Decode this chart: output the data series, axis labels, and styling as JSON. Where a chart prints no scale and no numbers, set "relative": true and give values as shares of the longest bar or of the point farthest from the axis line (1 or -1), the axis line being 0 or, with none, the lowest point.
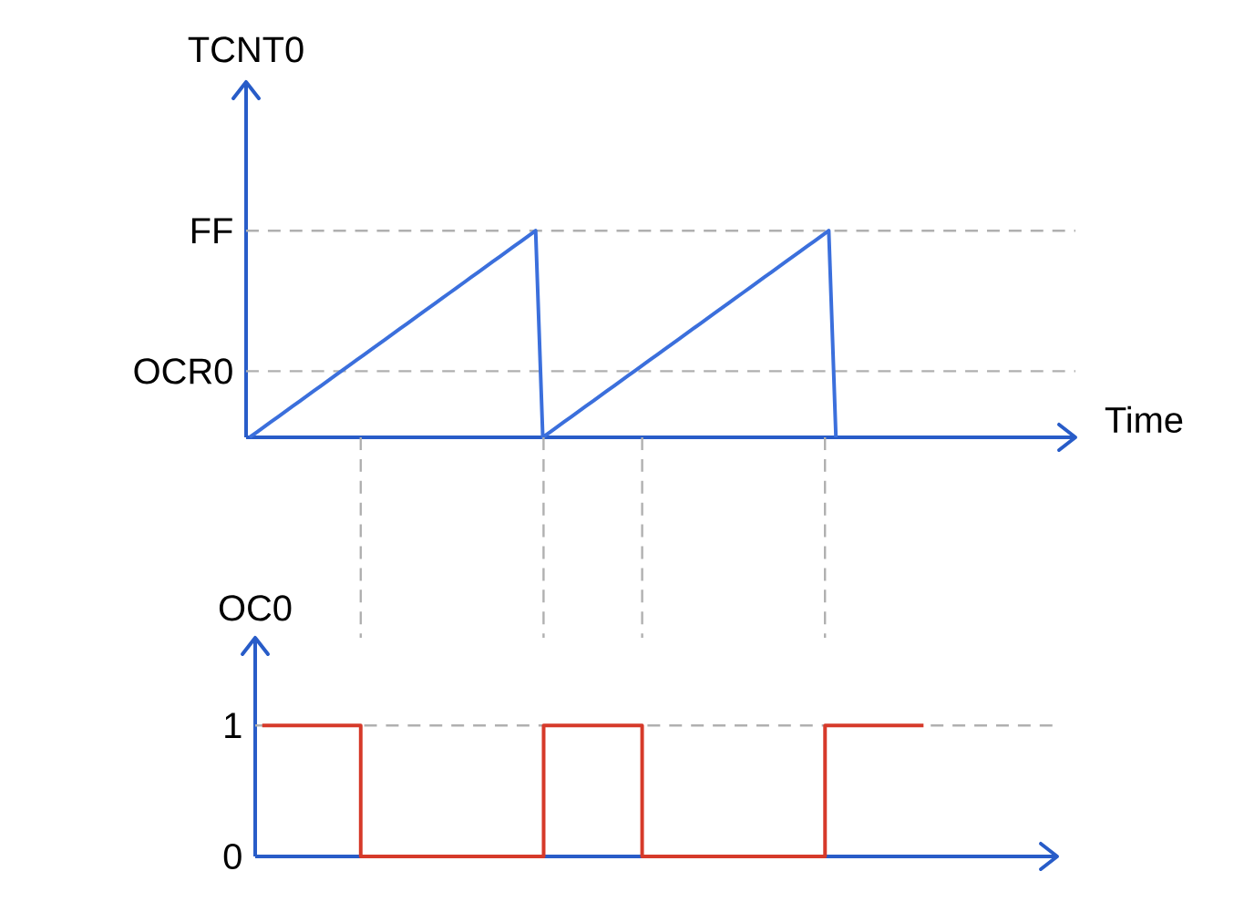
{
  "chart_data": [
    {
      "type": "line",
      "ylabel": "TCNT0",
      "xlabel": "Time",
      "relative": true,
      "categories": [
        null,
        null,
        null,
        null,
        null,
        null,
        null,
        null,
        null,
        null,
        null,
        null,
        null,
        null,
        null,
        null,
        null,
        null,
        null,
        null,
        null,
        null,
        null,
        null,
        null,
        null,
        null,
        null,
        null,
        null,
        null,
        null,
        null,
        null,
        null,
        null,
        null,
        null,
        null,
        null,
        null,
        null,
        null,
        null,
        null,
        null,
        null,
        null,
        null,
        null,
        null,
        null,
        null,
        null,
        null,
        null,
        null,
        null,
        null,
        null,
        null,
        null,
        null,
        null,
        null,
        null,
        null,
        null,
        null,
        null,
        null,
        null,
        null,
        null,
        null,
        null,
        null,
        null,
        null,
        null,
        null,
        null,
        null,
        null,
        null,
        null,
        null,
        null,
        null,
        null,
        null,
        null,
        null,
        null,
        null,
        null,
        null,
        null,
        null,
        null,
        null,
        null,
        null,
        null,
        null,
        null,
        null,
        null,
        null,
        null,
        null,
        null,
        null,
        null,
        null,
        null
      ],
      "values": [
        0,
        0.025,
        0.05,
        0.075,
        0.1,
        0.125,
        0.15,
        0.175,
        0.2,
        0.225,
        0.25,
        0.275,
        0.3,
        0.325,
        0.35,
        0.375,
        0.4,
        0.425,
        0.45,
        0.475,
        0.5,
        0.525,
        0.55,
        0.575,
        0.6,
        0.625,
        0.65,
        0.675,
        0.7,
        0.725,
        0.75,
        0.775,
        0.8,
        0.825,
        0.85,
        0.875,
        0.9,
        0.925,
        0.95,
        0.975,
        1,
        0,
        0.025,
        0.05,
        0.075,
        0.1,
        0.125,
        0.15,
        0.175,
        0.2,
        0.225,
        0.25,
        0.275,
        0.3,
        0.325,
        0.35,
        0.375,
        0.4,
        0.425,
        0.45,
        0.475,
        0.5,
        0.525,
        0.55,
        0.575,
        0.6,
        0.625,
        0.65,
        0.675,
        0.7,
        0.725,
        0.75,
        0.775,
        0.8,
        0.825,
        0.85,
        0.875,
        0.9,
        0.925,
        0.95,
        0.975,
        1,
        0,
        null,
        null,
        null,
        null,
        null,
        null,
        null,
        null,
        null,
        null,
        null,
        null,
        null,
        null,
        null,
        null,
        null,
        null,
        null,
        null,
        null,
        null,
        null,
        null,
        null,
        null,
        null,
        null,
        null,
        null,
        null,
        null,
        null
      ],
      "color": "#3b6fdc",
      "tick_labels": false,
      "ref_lines": [
        {
          "axis": "y",
          "value": 1,
          "label": "FF",
          "color": "#b0b0b0",
          "line_style": "dashed"
        },
        {
          "axis": "y",
          "value": 0.32,
          "label": "OCR0",
          "color": "#b0b0b0",
          "line_style": "dashed"
        }
      ]
    },
    {
      "type": "step",
      "ylabel": "OC0",
      "categories": [
        null,
        null,
        null,
        null,
        null,
        null,
        null,
        null,
        null,
        null,
        null,
        null,
        null,
        null,
        null,
        null,
        null,
        null,
        null,
        null,
        null,
        null,
        null,
        null,
        null,
        null,
        null,
        null,
        null,
        null,
        null,
        null,
        null,
        null,
        null,
        null,
        null,
        null,
        null,
        null,
        null,
        null,
        null,
        null,
        null,
        null,
        null,
        null,
        null,
        null,
        null,
        null,
        null,
        null,
        null,
        null,
        null
      ],
      "values": [
        1,
        1,
        1,
        1,
        1,
        1,
        1,
        0,
        0,
        0,
        0,
        0,
        0,
        0,
        0,
        0,
        0,
        0,
        0,
        0,
        1,
        1,
        1,
        1,
        1,
        1,
        1,
        0,
        0,
        0,
        0,
        0,
        0,
        0,
        0,
        0,
        0,
        0,
        0,
        0,
        1,
        1,
        1,
        1,
        1,
        1,
        1,
        1,
        null,
        null,
        null,
        null,
        null,
        null,
        null,
        null,
        null
      ],
      "color": "#d63a2a",
      "ylim": [
        0,
        1.67
      ],
      "yticks": [
        0,
        1
      ],
      "tick_labels": "y",
      "ref_lines": [
        {
          "axis": "y",
          "value": 1,
          "color": "#b0b0b0",
          "line_style": "dashed"
        }
      ]
    }
  ]
}
